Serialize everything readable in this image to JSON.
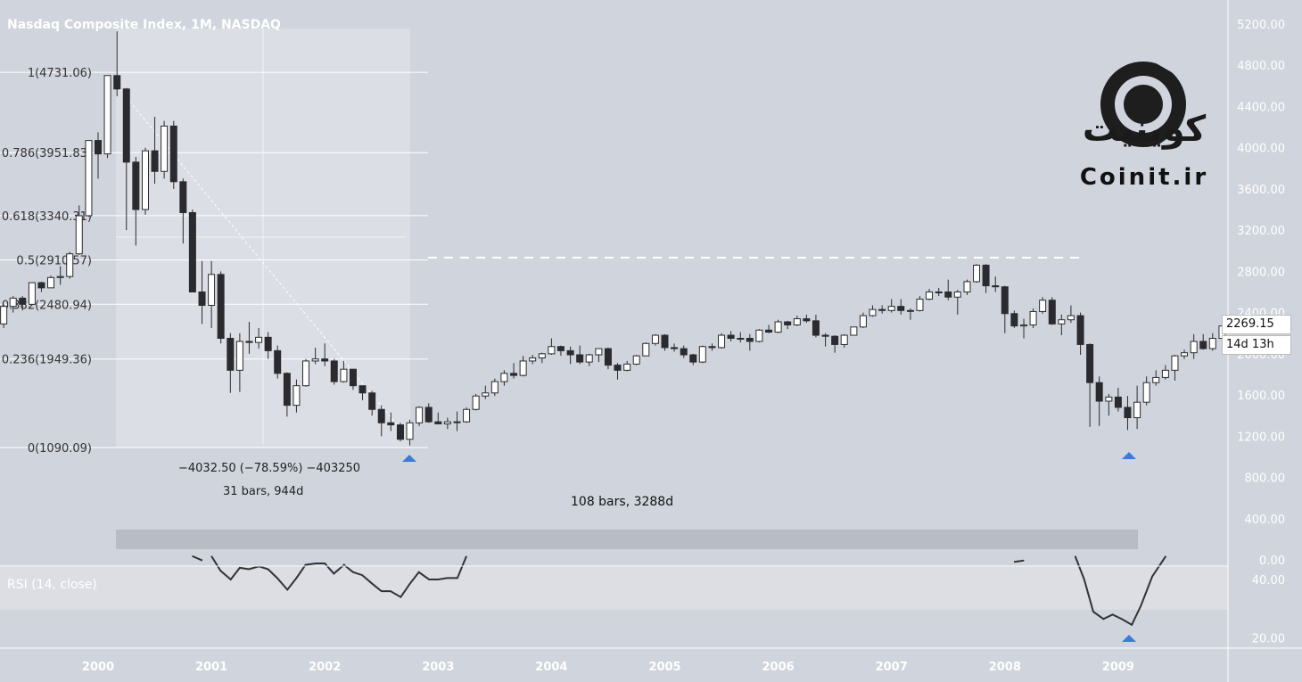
{
  "header": {
    "title": "Nasdaq Composite Index, 1M, NASDAQ"
  },
  "indicator": {
    "label": "RSI (14, close)"
  },
  "measure": {
    "change": "−4032.50 (−78.59%) −403250",
    "bars": "31 bars, 944d"
  },
  "date_range": {
    "label": "108 bars, 3288d"
  },
  "last_price": {
    "value": "2269.15",
    "countdown": "14d 13h"
  },
  "brand": {
    "name_fa": "کوینیت",
    "name_en": "Coinit.ir"
  },
  "colors": {
    "background": "#d0d4dc",
    "up_candle": "#ffffff",
    "down_candle": "#2b2b2f",
    "marker": "#3d7bd9",
    "fib_line": "#ffffff"
  },
  "chart_data": [
    {
      "type": "candlestick",
      "title": "Nasdaq Composite Index, 1M, NASDAQ",
      "x_unit": "year",
      "x_ticks": [
        "2000",
        "2001",
        "2002",
        "2003",
        "2004",
        "2005",
        "2006",
        "2007",
        "2008",
        "2009"
      ],
      "y_ticks": [
        "5200.00",
        "4800.00",
        "4400.00",
        "4000.00",
        "3600.00",
        "3200.00",
        "2800.00",
        "2400.00",
        "2000.00",
        "1600.00",
        "1200.00",
        "800.00",
        "400.00",
        "0.00"
      ],
      "ylim": [
        0,
        5200
      ],
      "fib_levels": [
        {
          "label": "1(4731.06)",
          "value": 4731.06
        },
        {
          "label": "0.786(3951.83)",
          "value": 3951.83
        },
        {
          "label": "0.618(3340.31)",
          "value": 3340.31
        },
        {
          "label": "0.5(2910.57)",
          "value": 2910.57
        },
        {
          "label": "0.382(2480.94)",
          "value": 2480.94
        },
        {
          "label": "0.236(1949.36)",
          "value": 1949.36
        },
        {
          "label": "0(1090.09)",
          "value": 1090.09
        }
      ],
      "dashed_level": 2910.57,
      "last_price": 2269.15,
      "markers": [
        2002.75,
        2009.1
      ],
      "candles": [
        [
          1999.0,
          2280,
          2310,
          2200,
          2270
        ],
        [
          1999.083,
          2270,
          2410,
          2250,
          2290
        ],
        [
          1999.167,
          2290,
          2480,
          2250,
          2460
        ],
        [
          1999.25,
          2460,
          2560,
          2400,
          2540
        ],
        [
          1999.333,
          2540,
          2560,
          2420,
          2480
        ],
        [
          1999.417,
          2480,
          2690,
          2470,
          2690
        ],
        [
          1999.5,
          2690,
          2700,
          2600,
          2640
        ],
        [
          1999.583,
          2640,
          2760,
          2650,
          2740
        ],
        [
          1999.667,
          2740,
          2850,
          2670,
          2750
        ],
        [
          1999.75,
          2750,
          2990,
          2730,
          2970
        ],
        [
          1999.833,
          2970,
          3440,
          2960,
          3340
        ],
        [
          1999.917,
          3340,
          4070,
          3330,
          4070
        ],
        [
          2000.0,
          4070,
          4150,
          3700,
          3940
        ],
        [
          2000.083,
          3940,
          4700,
          3900,
          4700
        ],
        [
          2000.167,
          4700,
          5130,
          4500,
          4570
        ],
        [
          2000.25,
          4570,
          4580,
          3200,
          3860
        ],
        [
          2000.333,
          3860,
          3910,
          3050,
          3400
        ],
        [
          2000.417,
          3400,
          4000,
          3350,
          3970
        ],
        [
          2000.5,
          3970,
          4300,
          3650,
          3770
        ],
        [
          2000.583,
          3770,
          4260,
          3700,
          4210
        ],
        [
          2000.667,
          4210,
          4260,
          3600,
          3670
        ],
        [
          2000.75,
          3670,
          3700,
          3070,
          3370
        ],
        [
          2000.833,
          3370,
          3400,
          2600,
          2600
        ],
        [
          2000.917,
          2600,
          2900,
          2290,
          2470
        ],
        [
          2001.0,
          2470,
          2900,
          2250,
          2770
        ],
        [
          2001.083,
          2770,
          2800,
          2100,
          2150
        ],
        [
          2001.167,
          2150,
          2200,
          1620,
          1840
        ],
        [
          2001.25,
          1840,
          2200,
          1630,
          2120
        ],
        [
          2001.333,
          2120,
          2310,
          2000,
          2110
        ],
        [
          2001.417,
          2110,
          2250,
          2050,
          2160
        ],
        [
          2001.5,
          2160,
          2210,
          1950,
          2030
        ],
        [
          2001.583,
          2030,
          2080,
          1760,
          1810
        ],
        [
          2001.667,
          1810,
          1820,
          1390,
          1500
        ],
        [
          2001.75,
          1500,
          1750,
          1430,
          1690
        ],
        [
          2001.833,
          1690,
          1950,
          1680,
          1930
        ],
        [
          2001.917,
          1930,
          2060,
          1900,
          1950
        ],
        [
          2002.0,
          1950,
          2100,
          1880,
          1930
        ],
        [
          2002.083,
          1930,
          1950,
          1700,
          1730
        ],
        [
          2002.167,
          1730,
          1930,
          1720,
          1850
        ],
        [
          2002.25,
          1850,
          1850,
          1650,
          1690
        ],
        [
          2002.333,
          1690,
          1690,
          1550,
          1620
        ],
        [
          2002.417,
          1620,
          1640,
          1400,
          1460
        ],
        [
          2002.5,
          1460,
          1500,
          1200,
          1330
        ],
        [
          2002.583,
          1330,
          1430,
          1250,
          1310
        ],
        [
          2002.667,
          1310,
          1330,
          1150,
          1170
        ],
        [
          2002.75,
          1170,
          1360,
          1110,
          1330
        ],
        [
          2002.833,
          1330,
          1490,
          1300,
          1480
        ],
        [
          2002.917,
          1480,
          1520,
          1330,
          1340
        ],
        [
          2003.0,
          1340,
          1430,
          1320,
          1320
        ],
        [
          2003.083,
          1320,
          1380,
          1270,
          1340
        ],
        [
          2003.167,
          1340,
          1440,
          1250,
          1340
        ],
        [
          2003.25,
          1340,
          1480,
          1330,
          1460
        ],
        [
          2003.333,
          1460,
          1610,
          1450,
          1590
        ],
        [
          2003.417,
          1590,
          1690,
          1560,
          1620
        ],
        [
          2003.5,
          1620,
          1760,
          1590,
          1730
        ],
        [
          2003.583,
          1730,
          1840,
          1690,
          1810
        ],
        [
          2003.667,
          1810,
          1910,
          1760,
          1790
        ],
        [
          2003.75,
          1790,
          1980,
          1780,
          1930
        ],
        [
          2003.833,
          1930,
          1990,
          1900,
          1960
        ],
        [
          2003.917,
          1960,
          2010,
          1910,
          2000
        ],
        [
          2004.0,
          2000,
          2150,
          1990,
          2070
        ],
        [
          2004.083,
          2070,
          2080,
          1980,
          2030
        ],
        [
          2004.167,
          2030,
          2070,
          1900,
          1990
        ],
        [
          2004.25,
          1990,
          2080,
          1900,
          1920
        ],
        [
          2004.333,
          1920,
          2000,
          1880,
          1990
        ],
        [
          2004.417,
          1990,
          2050,
          1920,
          2050
        ],
        [
          2004.5,
          2050,
          2060,
          1850,
          1890
        ],
        [
          2004.583,
          1890,
          1910,
          1750,
          1840
        ],
        [
          2004.667,
          1840,
          1930,
          1830,
          1900
        ],
        [
          2004.75,
          1900,
          1990,
          1890,
          1980
        ],
        [
          2004.833,
          1980,
          2110,
          1980,
          2100
        ],
        [
          2004.917,
          2100,
          2190,
          2080,
          2180
        ],
        [
          2005.0,
          2180,
          2190,
          2030,
          2060
        ],
        [
          2005.083,
          2060,
          2100,
          2020,
          2050
        ],
        [
          2005.167,
          2050,
          2080,
          1960,
          1990
        ],
        [
          2005.25,
          1990,
          2000,
          1890,
          1920
        ],
        [
          2005.333,
          1920,
          2080,
          1910,
          2070
        ],
        [
          2005.417,
          2070,
          2100,
          2030,
          2060
        ],
        [
          2005.5,
          2060,
          2200,
          2050,
          2180
        ],
        [
          2005.583,
          2180,
          2220,
          2120,
          2150
        ],
        [
          2005.667,
          2150,
          2210,
          2110,
          2150
        ],
        [
          2005.75,
          2150,
          2190,
          2030,
          2120
        ],
        [
          2005.833,
          2120,
          2240,
          2110,
          2230
        ],
        [
          2005.917,
          2230,
          2280,
          2200,
          2210
        ],
        [
          2006.0,
          2210,
          2330,
          2200,
          2310
        ],
        [
          2006.083,
          2310,
          2320,
          2240,
          2280
        ],
        [
          2006.167,
          2280,
          2370,
          2270,
          2340
        ],
        [
          2006.25,
          2340,
          2380,
          2300,
          2320
        ],
        [
          2006.333,
          2320,
          2380,
          2160,
          2180
        ],
        [
          2006.417,
          2180,
          2200,
          2070,
          2170
        ],
        [
          2006.5,
          2170,
          2180,
          2010,
          2090
        ],
        [
          2006.583,
          2090,
          2190,
          2060,
          2180
        ],
        [
          2006.667,
          2180,
          2260,
          2180,
          2260
        ],
        [
          2006.75,
          2260,
          2400,
          2250,
          2370
        ],
        [
          2006.833,
          2370,
          2470,
          2360,
          2430
        ],
        [
          2006.917,
          2430,
          2470,
          2390,
          2420
        ],
        [
          2007.0,
          2420,
          2530,
          2400,
          2460
        ],
        [
          2007.083,
          2460,
          2530,
          2380,
          2420
        ],
        [
          2007.167,
          2420,
          2440,
          2330,
          2420
        ],
        [
          2007.25,
          2420,
          2560,
          2410,
          2530
        ],
        [
          2007.333,
          2530,
          2630,
          2520,
          2600
        ],
        [
          2007.417,
          2600,
          2640,
          2560,
          2600
        ],
        [
          2007.5,
          2600,
          2720,
          2520,
          2550
        ],
        [
          2007.583,
          2550,
          2620,
          2380,
          2600
        ],
        [
          2007.667,
          2600,
          2720,
          2570,
          2700
        ],
        [
          2007.75,
          2700,
          2870,
          2690,
          2860
        ],
        [
          2007.833,
          2860,
          2870,
          2590,
          2660
        ],
        [
          2007.917,
          2660,
          2750,
          2600,
          2650
        ],
        [
          2008.0,
          2650,
          2660,
          2200,
          2390
        ],
        [
          2008.083,
          2390,
          2420,
          2250,
          2270
        ],
        [
          2008.167,
          2270,
          2340,
          2150,
          2280
        ],
        [
          2008.25,
          2280,
          2440,
          2250,
          2410
        ],
        [
          2008.333,
          2410,
          2550,
          2390,
          2520
        ],
        [
          2008.417,
          2520,
          2550,
          2280,
          2290
        ],
        [
          2008.5,
          2290,
          2380,
          2180,
          2330
        ],
        [
          2008.583,
          2330,
          2470,
          2300,
          2370
        ],
        [
          2008.667,
          2370,
          2400,
          1990,
          2090
        ],
        [
          2008.75,
          2090,
          2100,
          1290,
          1720
        ],
        [
          2008.833,
          1720,
          1780,
          1300,
          1540
        ],
        [
          2008.917,
          1540,
          1610,
          1400,
          1580
        ],
        [
          2009.0,
          1580,
          1670,
          1440,
          1480
        ],
        [
          2009.083,
          1480,
          1590,
          1260,
          1380
        ],
        [
          2009.167,
          1380,
          1690,
          1270,
          1530
        ],
        [
          2009.25,
          1530,
          1780,
          1500,
          1720
        ],
        [
          2009.333,
          1720,
          1840,
          1690,
          1770
        ],
        [
          2009.417,
          1770,
          1890,
          1750,
          1840
        ],
        [
          2009.5,
          1840,
          1990,
          1740,
          1980
        ],
        [
          2009.583,
          1980,
          2040,
          1950,
          2010
        ],
        [
          2009.667,
          2010,
          2190,
          1950,
          2120
        ],
        [
          2009.75,
          2120,
          2190,
          2040,
          2050
        ],
        [
          2009.833,
          2050,
          2200,
          2030,
          2150
        ],
        [
          2009.917,
          2150,
          2300,
          2140,
          2270
        ]
      ]
    },
    {
      "type": "line",
      "title": "RSI (14, close)",
      "x_unit": "year",
      "y_ticks": [
        "40.00",
        "20.00"
      ],
      "values_visible_segments": [
        {
          "x": [
            2000.83,
            2000.92
          ],
          "y": [
            48,
            46.5
          ]
        },
        {
          "x": [
            2001.0,
            2001.08,
            2001.17,
            2001.25,
            2001.33,
            2001.42,
            2001.5,
            2001.58,
            2001.67,
            2001.75,
            2001.83,
            2001.92,
            2002.0,
            2002.08,
            2002.17,
            2002.25,
            2002.33,
            2002.42,
            2002.5,
            2002.58,
            2002.67,
            2002.75,
            2002.83,
            2002.92,
            2003.0,
            2003.08,
            2003.17,
            2003.25
          ],
          "y": [
            48,
            43,
            40,
            44,
            43.5,
            44.5,
            43.5,
            40.5,
            36.5,
            40.5,
            45,
            45.5,
            45.5,
            42,
            45,
            42.5,
            41.5,
            38.5,
            36,
            36,
            34,
            38.5,
            42.5,
            40,
            40,
            40.5,
            40.5,
            48
          ]
        },
        {
          "x": [
            2008.08,
            2008.17
          ],
          "y": [
            46,
            46.5
          ]
        },
        {
          "x": [
            2008.62,
            2008.7,
            2008.78,
            2008.87,
            2008.95,
            2009.03,
            2009.12,
            2009.2,
            2009.3,
            2009.42
          ],
          "y": [
            48,
            40,
            29,
            26.5,
            28,
            26.5,
            24.5,
            31,
            41,
            48
          ]
        }
      ]
    }
  ]
}
